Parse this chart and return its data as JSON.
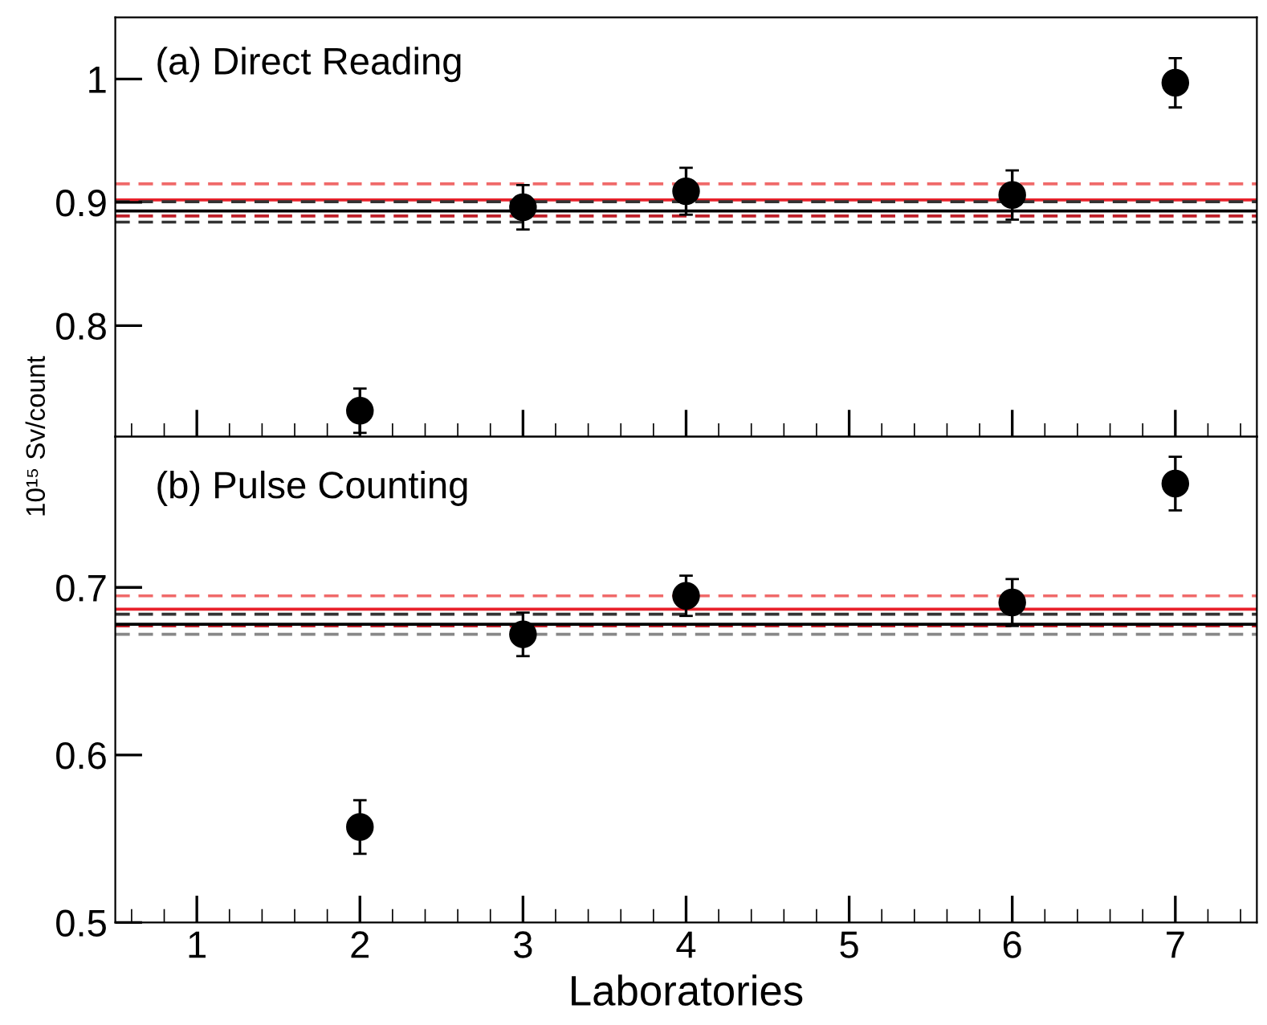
{
  "chart_data": [
    {
      "type": "scatter",
      "title": "(a) Direct Reading",
      "x": [
        2,
        3,
        4,
        6,
        7
      ],
      "series": [
        {
          "color": "#000000",
          "values": [
            0.731,
            0.896,
            0.909,
            0.906,
            0.997
          ],
          "errors": [
            0.018,
            0.018,
            0.019,
            0.02,
            0.02
          ]
        }
      ],
      "marker": "circle",
      "xlim": [
        0.5,
        7.5
      ],
      "xticks": [
        1,
        2,
        3,
        4,
        5,
        6,
        7
      ],
      "ylim": [
        0.71,
        1.05
      ],
      "yticks": [
        0.8,
        0.9,
        1
      ],
      "tick_labels": "y",
      "grid": false,
      "legend": false,
      "ref_lines": [
        {
          "axis": "y",
          "value": 0.902,
          "color": "#e8202a",
          "line_style": "solid"
        },
        {
          "axis": "y",
          "value": 0.915,
          "color": "#f06a6a",
          "line_style": "dashed"
        },
        {
          "axis": "y",
          "value": 0.889,
          "color": "#c0202a",
          "line_style": "dashed"
        },
        {
          "axis": "y",
          "value": 0.893,
          "color": "#000000",
          "line_style": "solid"
        },
        {
          "axis": "y",
          "value": 0.9005,
          "color": "#333333",
          "line_style": "dashed"
        },
        {
          "axis": "y",
          "value": 0.884,
          "color": "#333333",
          "line_style": "dashed"
        }
      ]
    },
    {
      "type": "scatter",
      "title": "(b) Pulse Counting",
      "xlabel": "Laboratories",
      "ylabel": "10¹⁵ Sv/count",
      "x": [
        2,
        3,
        4,
        6,
        7
      ],
      "series": [
        {
          "color": "#000000",
          "values": [
            0.557,
            0.672,
            0.695,
            0.691,
            0.762
          ],
          "errors": [
            0.016,
            0.013,
            0.012,
            0.014,
            0.016
          ]
        }
      ],
      "marker": "circle",
      "xlim": [
        0.5,
        7.5
      ],
      "xticks": [
        1,
        2,
        3,
        4,
        5,
        6,
        7
      ],
      "ylim": [
        0.5,
        0.79
      ],
      "yticks": [
        0.5,
        0.6,
        0.7
      ],
      "grid": false,
      "legend": false,
      "ref_lines": [
        {
          "axis": "y",
          "value": 0.687,
          "color": "#e8202a",
          "line_style": "solid"
        },
        {
          "axis": "y",
          "value": 0.695,
          "color": "#f06a6a",
          "line_style": "dashed"
        },
        {
          "axis": "y",
          "value": 0.677,
          "color": "#c0202a",
          "line_style": "dashed"
        },
        {
          "axis": "y",
          "value": 0.678,
          "color": "#000000",
          "line_style": "solid"
        },
        {
          "axis": "y",
          "value": 0.684,
          "color": "#333333",
          "line_style": "dashed"
        },
        {
          "axis": "y",
          "value": 0.672,
          "color": "#888888",
          "line_style": "dashed"
        }
      ]
    }
  ]
}
